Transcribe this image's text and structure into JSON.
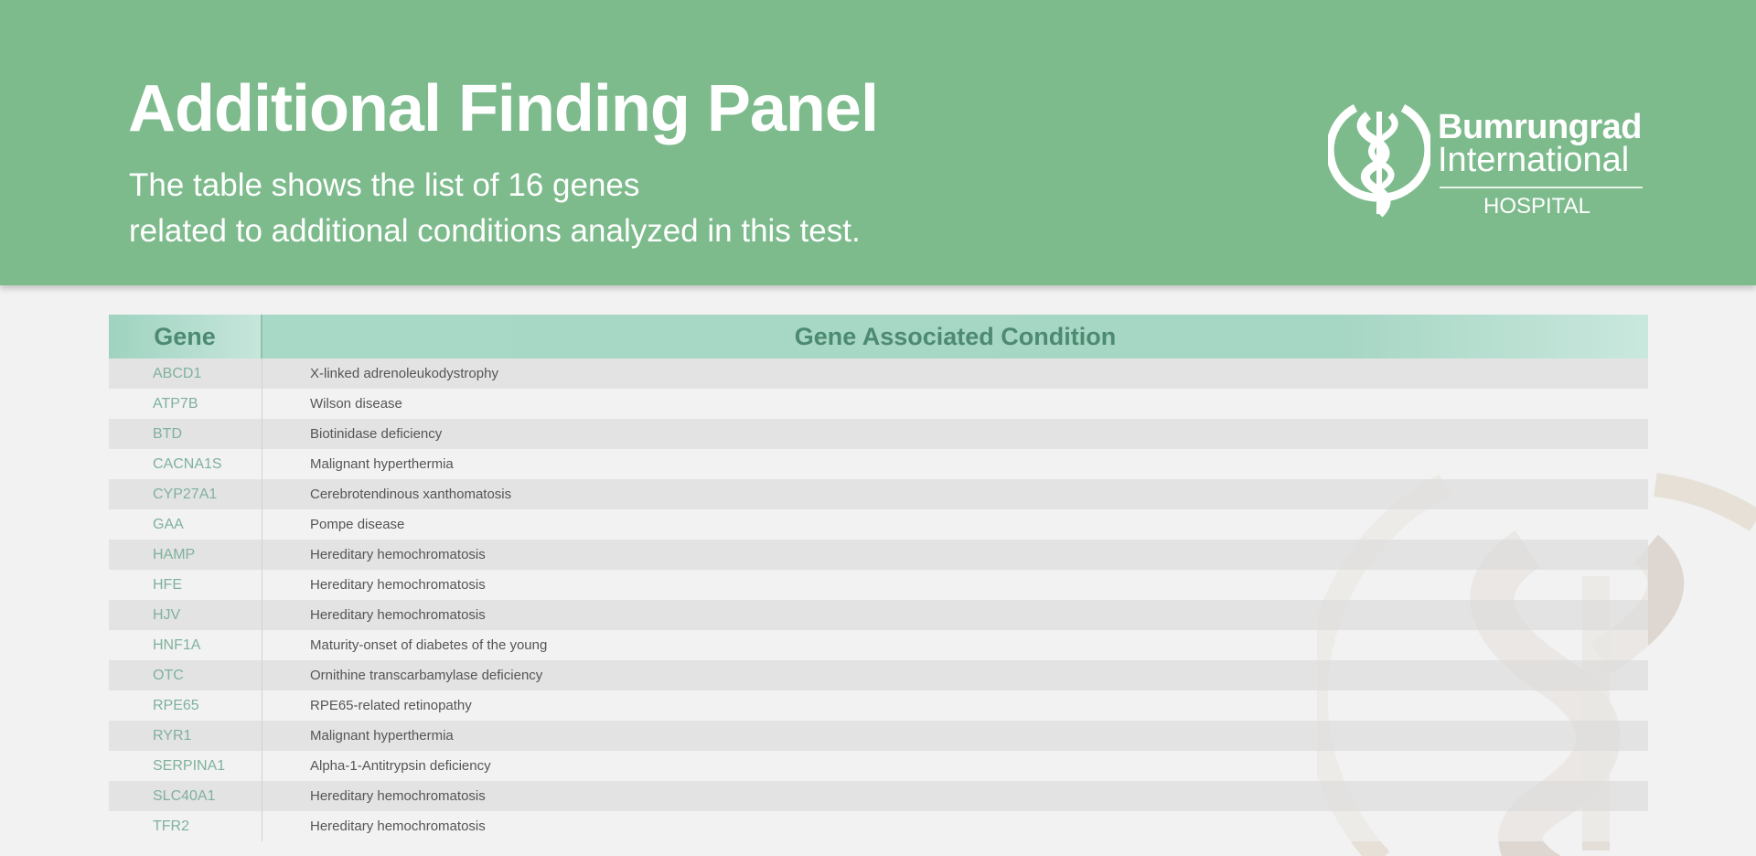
{
  "header": {
    "title": "Additional Finding Panel",
    "subtitle_line1": "The table shows the list of 16 genes",
    "subtitle_line2": "related to additional conditions analyzed in this test."
  },
  "logo": {
    "line1": "Bumrungrad",
    "line2": "International",
    "line3": "HOSPITAL"
  },
  "colors": {
    "banner": "#7dbb8c",
    "table_header": "#a8d8c6",
    "gene_text": "#7fb19d"
  },
  "table": {
    "headers": [
      "Gene",
      "Gene Associated Condition"
    ],
    "rows": [
      [
        "ABCD1",
        "X-linked adrenoleukodystrophy"
      ],
      [
        "ATP7B",
        "Wilson disease"
      ],
      [
        "BTD",
        "Biotinidase deficiency"
      ],
      [
        "CACNA1S",
        "Malignant hyperthermia"
      ],
      [
        "CYP27A1",
        "Cerebrotendinous xanthomatosis"
      ],
      [
        "GAA",
        "Pompe disease"
      ],
      [
        "HAMP",
        "Hereditary hemochromatosis"
      ],
      [
        "HFE",
        "Hereditary hemochromatosis"
      ],
      [
        "HJV",
        "Hereditary hemochromatosis"
      ],
      [
        "HNF1A",
        "Maturity-onset of diabetes of the young"
      ],
      [
        "OTC",
        "Ornithine transcarbamylase deficiency"
      ],
      [
        "RPE65",
        "RPE65-related retinopathy"
      ],
      [
        "RYR1",
        "Malignant hyperthermia"
      ],
      [
        "SERPINA1",
        "Alpha-1-Antitrypsin deficiency"
      ],
      [
        "SLC40A1",
        "Hereditary hemochromatosis"
      ],
      [
        "TFR2",
        "Hereditary hemochromatosis"
      ]
    ]
  }
}
